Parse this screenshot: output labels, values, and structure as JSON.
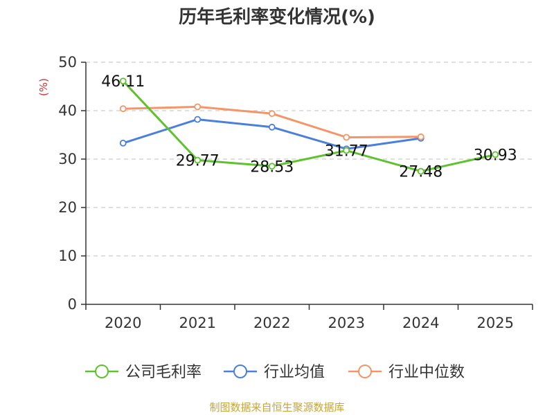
{
  "chart_data": {
    "type": "line",
    "title": "历年毛利率变化情况(%)",
    "ylabel": "(%)",
    "categories": [
      "2020",
      "2021",
      "2022",
      "2023",
      "2024",
      "2025"
    ],
    "ylim": [
      0,
      50
    ],
    "yticks": [
      0,
      10,
      20,
      30,
      40,
      50
    ],
    "grid": true,
    "legend_position": "bottom",
    "series": [
      {
        "name": "公司毛利率",
        "color": "#5dc22c",
        "values": [
          46.11,
          29.77,
          28.53,
          31.77,
          27.48,
          30.93
        ],
        "labels": [
          "46.11",
          "29.77",
          "28.53",
          "31.77",
          "27.48",
          "30.93"
        ]
      },
      {
        "name": "行业均值",
        "color": "#4a7fdb",
        "values": [
          33.3,
          38.2,
          36.6,
          32.1,
          34.3,
          null
        ]
      },
      {
        "name": "行业中位数",
        "color": "#f59466",
        "values": [
          40.4,
          40.8,
          39.4,
          34.5,
          34.6,
          null
        ]
      }
    ]
  },
  "source": "制图数据来自恒生聚源数据库",
  "colors": {
    "axis": "#333333",
    "grid": "#cccccc",
    "unit": "#d32f2f",
    "source": "#c7a43a"
  }
}
